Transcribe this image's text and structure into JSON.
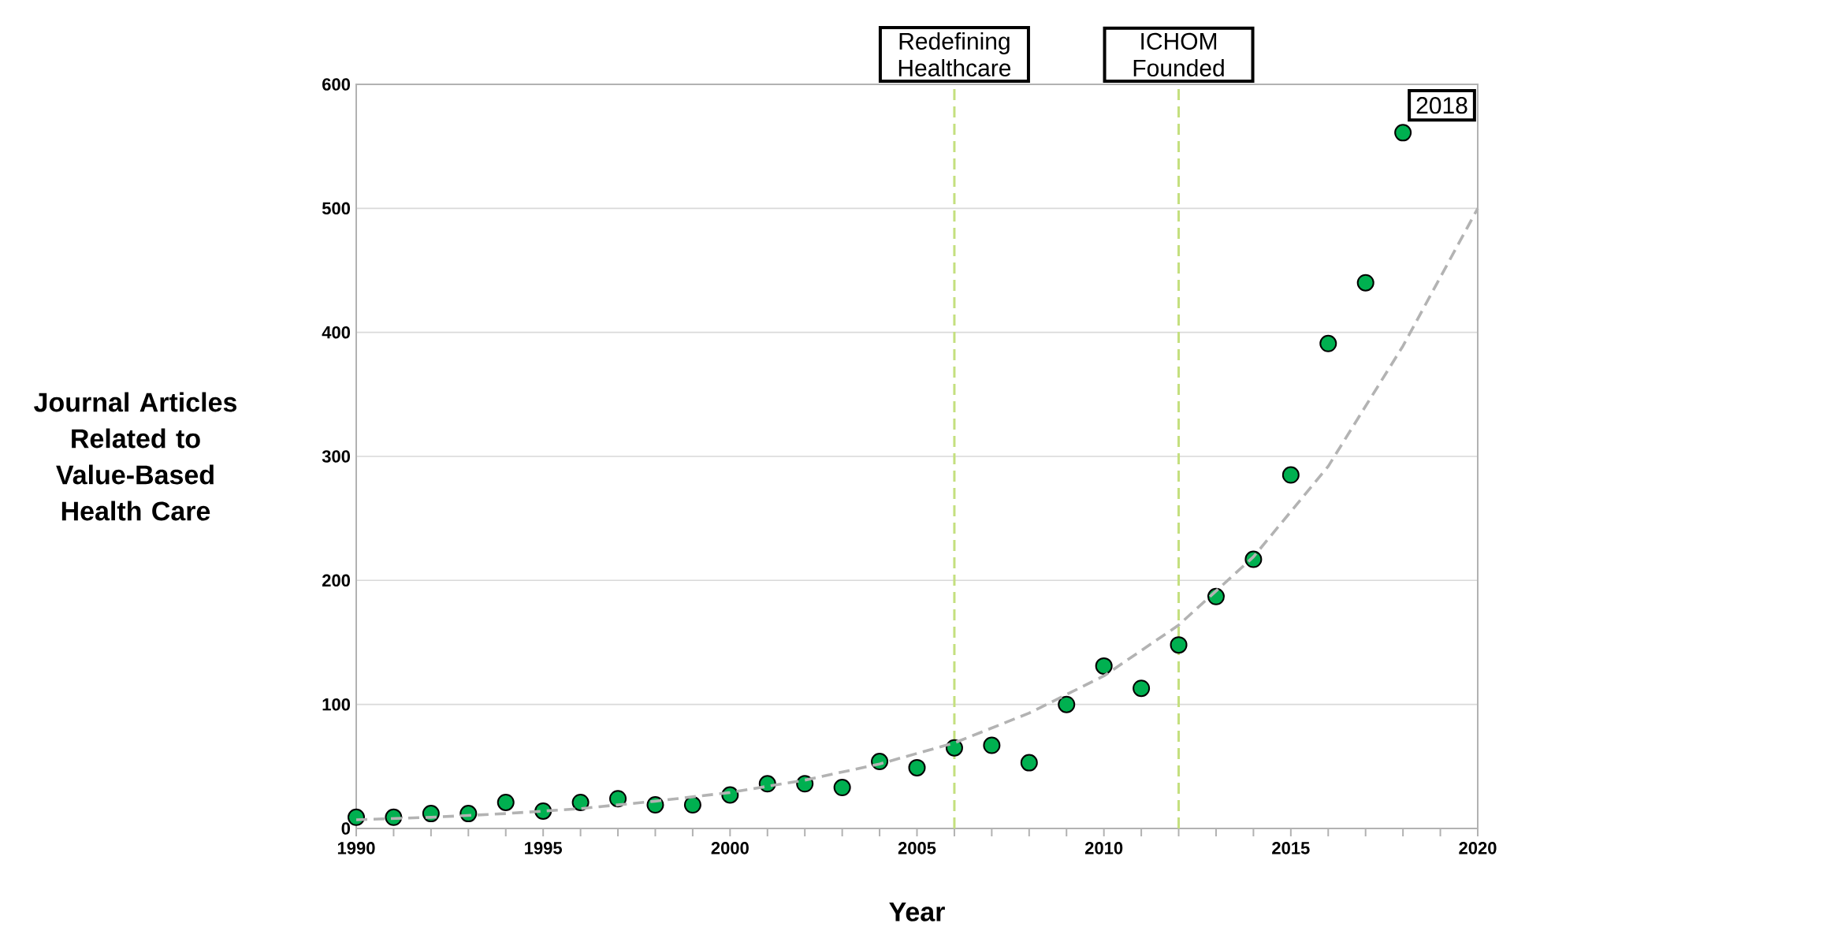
{
  "chart_data": {
    "type": "scatter",
    "xlabel": "Year",
    "ylabel": "Journal Articles Related to Value-Based Health Care",
    "x": [
      1990,
      1991,
      1992,
      1993,
      1994,
      1995,
      1996,
      1997,
      1998,
      1999,
      2000,
      2001,
      2002,
      2003,
      2004,
      2005,
      2006,
      2007,
      2008,
      2009,
      2010,
      2011,
      2012,
      2013,
      2014,
      2015,
      2016,
      2017,
      2018
    ],
    "series": [
      {
        "color": "#00b050",
        "marker": "circle",
        "values": [
          9,
          9,
          12,
          12,
          21,
          14,
          21,
          24,
          19,
          19,
          27,
          36,
          36,
          33,
          54,
          49,
          65,
          67,
          53,
          100,
          131,
          113,
          148,
          187,
          217,
          285,
          391,
          440,
          561
        ]
      },
      {
        "type": "line",
        "color": "#b3b3b3",
        "line_style": "dashed",
        "marker": "none",
        "x": [
          1990,
          1992,
          1994,
          1996,
          1998,
          2000,
          2002,
          2004,
          2006,
          2008,
          2010,
          2012,
          2014,
          2016,
          2018,
          2020
        ],
        "values": [
          7,
          9,
          12,
          16,
          22,
          29,
          39,
          52,
          69,
          93,
          123,
          164,
          219,
          292,
          389,
          500
        ]
      }
    ],
    "xlim": [
      1990,
      2020
    ],
    "ylim": [
      0,
      600
    ],
    "xticks": [
      1990,
      {
        "value": 1991,
        "label": null
      },
      {
        "value": 1992,
        "label": null
      },
      {
        "value": 1993,
        "label": null
      },
      {
        "value": 1994,
        "label": null
      },
      1995,
      {
        "value": 1996,
        "label": null
      },
      {
        "value": 1997,
        "label": null
      },
      {
        "value": 1998,
        "label": null
      },
      {
        "value": 1999,
        "label": null
      },
      2000,
      {
        "value": 2001,
        "label": null
      },
      {
        "value": 2002,
        "label": null
      },
      {
        "value": 2003,
        "label": null
      },
      {
        "value": 2004,
        "label": null
      },
      2005,
      {
        "value": 2006,
        "label": null
      },
      {
        "value": 2007,
        "label": null
      },
      {
        "value": 2008,
        "label": null
      },
      {
        "value": 2009,
        "label": null
      },
      2010,
      {
        "value": 2011,
        "label": null
      },
      {
        "value": 2012,
        "label": null
      },
      {
        "value": 2013,
        "label": null
      },
      {
        "value": 2014,
        "label": null
      },
      2015,
      {
        "value": 2016,
        "label": null
      },
      {
        "value": 2017,
        "label": null
      },
      {
        "value": 2018,
        "label": null
      },
      {
        "value": 2019,
        "label": null
      },
      2020
    ],
    "yticks": [
      0,
      100,
      200,
      300,
      400,
      500,
      600
    ],
    "grid": "y",
    "ref_lines": [
      {
        "axis": "x",
        "value": 2006,
        "label": "Redefining Healthcare",
        "color": "#c4df7e",
        "line_style": "dashed"
      },
      {
        "axis": "x",
        "value": 2012,
        "label": "ICHOM Founded",
        "color": "#c4df7e",
        "line_style": "dashed"
      }
    ],
    "annotations": [
      {
        "text": "2018",
        "x": 2018,
        "y": 561
      }
    ]
  }
}
